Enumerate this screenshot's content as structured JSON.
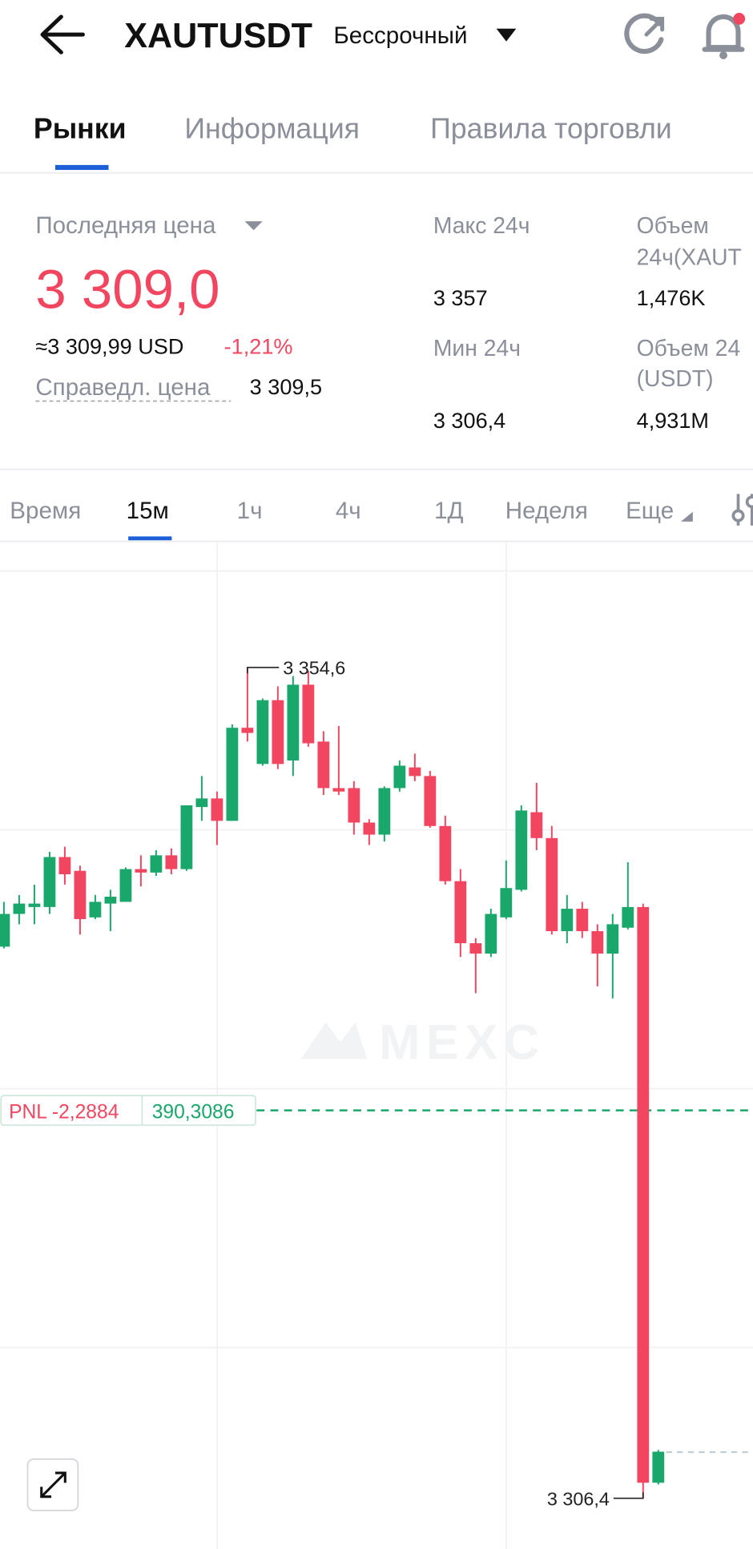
{
  "header": {
    "symbol": "XAUTUSDT",
    "contract": "Бессрочный"
  },
  "tabs": [
    "Рынки",
    "Информация",
    "Правила торговли"
  ],
  "ticker": {
    "last_price_label": "Последняя цена",
    "last_price": "3 309,0",
    "usd": "≈3 309,99 USD",
    "change": "-1,21%",
    "fair_label": "Справедл. цена",
    "fair": "3 309,5",
    "high_label": "Макс 24ч",
    "high": "3 357",
    "low_label": "Мин 24ч",
    "low": "3 306,4",
    "vol_base_label": [
      "Объем",
      "24ч(XAUT"
    ],
    "vol_base": "1,476K",
    "vol_quote_label": [
      "Объем 24",
      "(USDT)"
    ],
    "vol_quote": "4,931M"
  },
  "intervals": [
    "Время",
    "15м",
    "1ч",
    "4ч",
    "1Д",
    "Неделя",
    "Еще"
  ],
  "watermark": "MEXC",
  "position": {
    "pnl": "PNL -2,2884",
    "size": "390,3086"
  },
  "chart_data": {
    "type": "candlestick",
    "up_color": "#1aa76b",
    "down_color": "#f24660",
    "ylim": [
      3304.2,
      3361.8
    ],
    "max_label": "3 354,6",
    "min_label": "3 306,4",
    "open": [
      3338.4,
      3340.3,
      3340.7,
      3340.7,
      3343.6,
      3342.8,
      3340.1,
      3340.9,
      3341.0,
      3342.9,
      3342.7,
      3343.7,
      3342.9,
      3346.5,
      3347.0,
      3345.7,
      3351.1,
      3349.0,
      3352.7,
      3349.2,
      3353.6,
      3350.3,
      3347.6,
      3347.6,
      3345.6,
      3344.9,
      3347.6,
      3348.8,
      3348.3,
      3345.4,
      3342.2,
      3338.6,
      3338.0,
      3340.1,
      3341.7,
      3346.2,
      3344.7,
      3339.3,
      3340.6,
      3339.3,
      3338.0,
      3339.5,
      3340.7,
      3307.3
    ],
    "high": [
      3341.0,
      3341.4,
      3342.0,
      3343.9,
      3344.2,
      3343.1,
      3341.4,
      3341.7,
      3343.0,
      3343.7,
      3344.0,
      3344.1,
      3346.6,
      3348.3,
      3347.4,
      3351.3,
      3354.6,
      3352.8,
      3353.5,
      3354.1,
      3354.4,
      3350.9,
      3351.2,
      3348.0,
      3345.8,
      3347.7,
      3349.2,
      3349.6,
      3348.6,
      3346.0,
      3342.9,
      3338.9,
      3340.6,
      3343.4,
      3346.6,
      3347.9,
      3345.4,
      3341.4,
      3341.0,
      3339.7,
      3340.3,
      3343.3,
      3340.9,
      3309.2
    ],
    "low": [
      3338.3,
      3339.7,
      3339.7,
      3340.3,
      3342.0,
      3339.1,
      3340.0,
      3339.3,
      3341.0,
      3341.9,
      3342.5,
      3342.6,
      3342.8,
      3345.7,
      3344.3,
      3345.7,
      3350.3,
      3348.9,
      3348.7,
      3348.3,
      3350.0,
      3347.2,
      3347.2,
      3344.9,
      3344.3,
      3344.5,
      3347.4,
      3348.0,
      3345.3,
      3342.0,
      3337.8,
      3335.7,
      3337.8,
      3340.0,
      3341.6,
      3344.0,
      3339.1,
      3338.6,
      3338.9,
      3336.1,
      3335.4,
      3339.4,
      3306.4,
      3307.2
    ],
    "close": [
      3340.3,
      3340.9,
      3340.9,
      3343.6,
      3342.6,
      3340.0,
      3341.0,
      3341.3,
      3342.9,
      3342.7,
      3343.7,
      3342.9,
      3346.6,
      3347.0,
      3345.7,
      3351.1,
      3350.8,
      3352.7,
      3349.0,
      3353.6,
      3350.2,
      3347.6,
      3347.4,
      3345.6,
      3344.9,
      3347.6,
      3348.9,
      3348.3,
      3345.4,
      3342.2,
      3338.6,
      3338.0,
      3340.3,
      3341.8,
      3346.3,
      3344.7,
      3339.3,
      3340.6,
      3339.3,
      3338.0,
      3339.7,
      3340.7,
      3307.3,
      3309.1
    ]
  }
}
